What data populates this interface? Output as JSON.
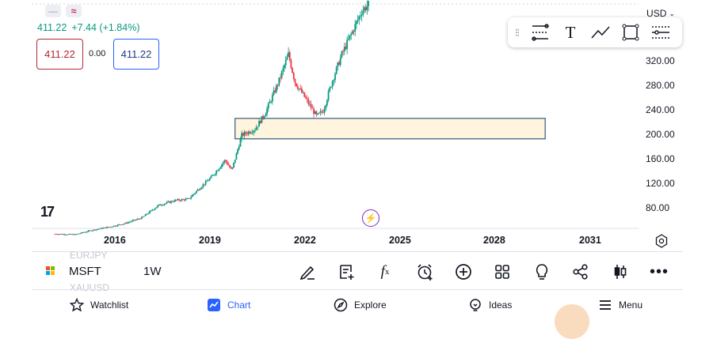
{
  "header": {
    "symbol_buttons": [
      "—",
      "≈"
    ],
    "price": "411.22",
    "change": "+7.44 (+1.84%)",
    "sell_price": "411.22",
    "spread": "0.00",
    "buy_price": "411.22",
    "currency": "USD"
  },
  "drawing_tools": [
    "fib-retracement-icon",
    "text-icon",
    "trend-line-icon",
    "rectangle-icon",
    "settings-lines-icon"
  ],
  "colors": {
    "up": "#089981",
    "down": "#f23645",
    "zone_fill": "#fff4dd",
    "zone_border": "#0b3a6e",
    "accent": "#2962ff"
  },
  "chart_data": {
    "type": "candlestick",
    "symbol": "MSFT",
    "interval": "1W",
    "y_ticks": [
      "320.00",
      "280.00",
      "240.00",
      "200.00",
      "160.00",
      "120.00",
      "80.00"
    ],
    "x_ticks": [
      "2016",
      "2019",
      "2022",
      "2025",
      "2028",
      "2031"
    ],
    "ylim": [
      55,
      420
    ],
    "xlim": [
      2014.2,
      2032.4
    ],
    "price_path": [
      [
        2014.9,
        46
      ],
      [
        2015.5,
        45
      ],
      [
        2016.0,
        52
      ],
      [
        2016.5,
        57
      ],
      [
        2017.0,
        63
      ],
      [
        2017.5,
        72
      ],
      [
        2018.0,
        92
      ],
      [
        2018.5,
        100
      ],
      [
        2018.9,
        102
      ],
      [
        2019.2,
        118
      ],
      [
        2019.6,
        138
      ],
      [
        2020.0,
        165
      ],
      [
        2020.2,
        148
      ],
      [
        2020.5,
        205
      ],
      [
        2020.9,
        215
      ],
      [
        2021.2,
        240
      ],
      [
        2021.6,
        290
      ],
      [
        2021.9,
        335
      ],
      [
        2022.1,
        290
      ],
      [
        2022.4,
        265
      ],
      [
        2022.75,
        235
      ],
      [
        2022.95,
        245
      ],
      [
        2023.2,
        290
      ],
      [
        2023.5,
        335
      ],
      [
        2023.85,
        375
      ],
      [
        2024.1,
        405
      ],
      [
        2024.3,
        415
      ]
    ],
    "zone": {
      "x_start": 2020.3,
      "x_end": 2029.6,
      "y_low": 199,
      "y_high": 232
    },
    "logo_text": "17"
  },
  "toolbar": {
    "ghost_top": "EURJPY",
    "ghost_bottom": "XAUUSD",
    "symbol": "MSFT",
    "interval": "1W",
    "icons": [
      "pen-icon",
      "add-note-icon",
      "function-icon",
      "alert-clock-icon",
      "add-circle-icon",
      "layout-grid-icon",
      "idea-bulb-icon",
      "share-icon",
      "candle-style-icon",
      "more-icon"
    ]
  },
  "nav": {
    "watchlist": "Watchlist",
    "chart": "Chart",
    "explore": "Explore",
    "ideas": "Ideas",
    "menu": "Menu"
  }
}
